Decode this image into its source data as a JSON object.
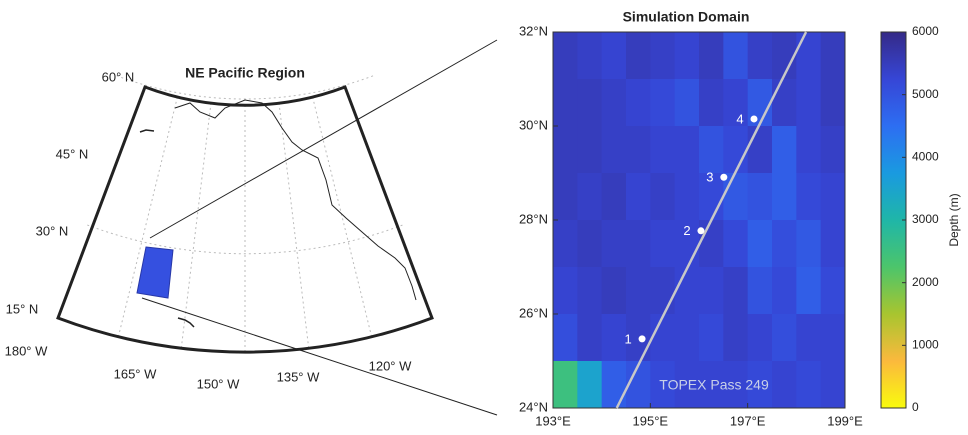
{
  "map": {
    "title": "NE Pacific Region",
    "lat_labels": [
      "60° N",
      "45° N",
      "30° N",
      "15° N"
    ],
    "lon_labels": [
      "180° W",
      "165° W",
      "150° W",
      "135° W",
      "120° W"
    ]
  },
  "chart_data": {
    "type": "heatmap",
    "title": "Simulation Domain",
    "xlim": [
      193,
      199
    ],
    "xticks": [
      {
        "value": 193,
        "label": "193°E"
      },
      {
        "value": 195,
        "label": "195°E"
      },
      {
        "value": 197,
        "label": "197°E"
      },
      {
        "value": 199,
        "label": "199°E"
      }
    ],
    "ylim": [
      24,
      32
    ],
    "yticks": [
      {
        "value": 24,
        "label": "24°N"
      },
      {
        "value": 26,
        "label": "26°N"
      },
      {
        "value": 28,
        "label": "28°N"
      },
      {
        "value": 30,
        "label": "30°N"
      },
      {
        "value": 32,
        "label": "32°N"
      }
    ],
    "z": [
      [
        5500,
        5400,
        5300,
        5500,
        5400,
        5300,
        5500,
        5000,
        5400,
        5500,
        5300,
        5500
      ],
      [
        5500,
        5500,
        5400,
        5300,
        5200,
        5000,
        5400,
        5300,
        4900,
        5400,
        5300,
        5500
      ],
      [
        5500,
        5500,
        5400,
        5400,
        5300,
        5300,
        5000,
        5200,
        5400,
        4800,
        5300,
        5400
      ],
      [
        5500,
        5400,
        5500,
        5300,
        5400,
        5300,
        5200,
        4900,
        5000,
        4800,
        5200,
        5300
      ],
      [
        5400,
        5500,
        5400,
        5400,
        5300,
        5300,
        5400,
        5200,
        4800,
        5100,
        4900,
        5300
      ],
      [
        5300,
        5400,
        5500,
        5400,
        5400,
        5300,
        5300,
        5400,
        5000,
        5200,
        4800,
        5200
      ],
      [
        5100,
        5400,
        5300,
        5400,
        5300,
        5300,
        5200,
        5400,
        5300,
        5100,
        5300,
        5300
      ],
      [
        2500,
        3500,
        4800,
        5000,
        5200,
        5300,
        5300,
        5300,
        5200,
        5300,
        5200,
        5300
      ]
    ],
    "colors": [
      "#f9fb0e",
      "#fbb93d",
      "#a8c52f",
      "#4cc56b",
      "#1fb6a8",
      "#1a9ae0",
      "#2d6ef2",
      "#3646d6",
      "#352a87"
    ],
    "clim": [
      0,
      6000
    ],
    "cticks": [
      0,
      1000,
      2000,
      3000,
      4000,
      5000,
      6000
    ],
    "colorbar_label": "Depth (m)",
    "track": {
      "x": [
        194.31,
        198.2
      ],
      "y": [
        24,
        32
      ],
      "color": "#c8c8c8"
    },
    "points": {
      "x": [
        194.83,
        196.04,
        196.51,
        197.13
      ],
      "y": [
        25.47,
        27.77,
        28.91,
        30.15
      ],
      "labels": [
        "1",
        "2",
        "3",
        "4"
      ],
      "color": "#ffffff"
    },
    "annotation": "TOPEX Pass 249"
  }
}
